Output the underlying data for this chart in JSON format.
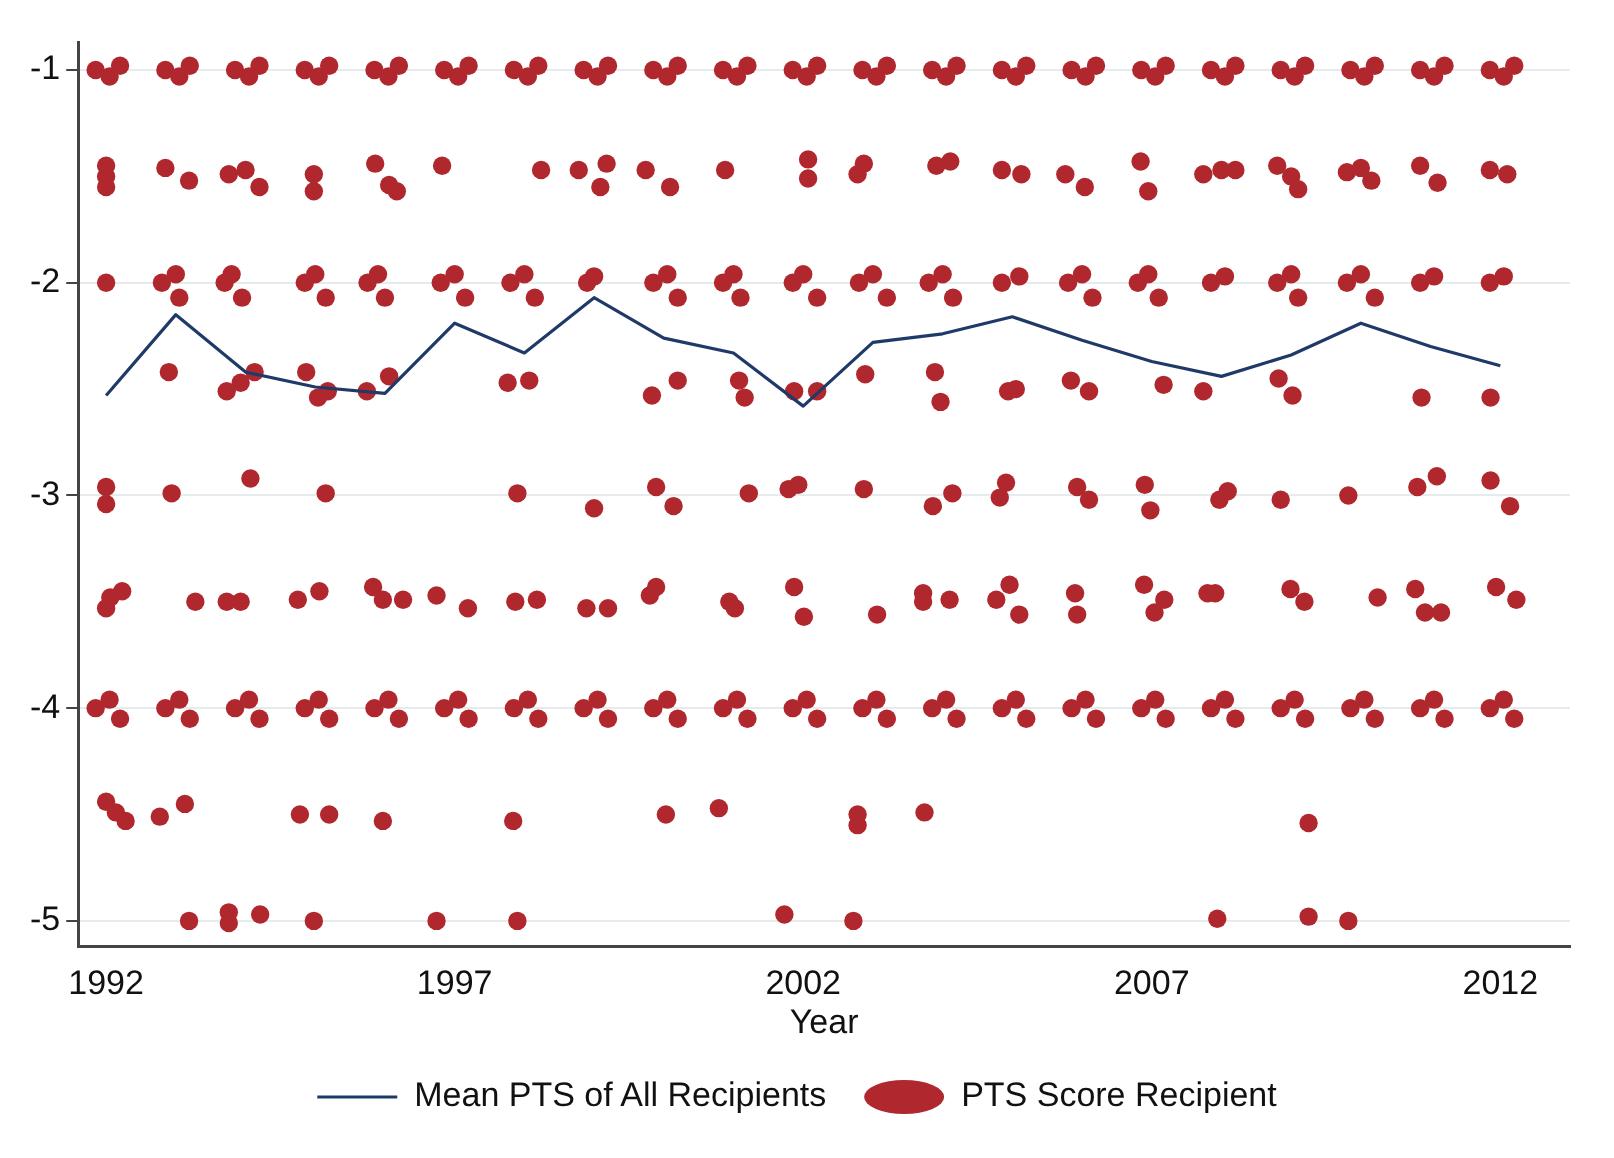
{
  "chart_data": {
    "type": "scatter",
    "xlabel": "Year",
    "xlim": [
      1991.6,
      2013
    ],
    "xticks": [
      1992,
      1997,
      2002,
      2007,
      2012
    ],
    "ylim": [
      -5.12,
      -0.87
    ],
    "yticks": [
      -1,
      -2,
      -3,
      -4,
      -5
    ],
    "grid": "y",
    "legend": "bottom",
    "series": [
      {
        "name": "Mean PTS of All Recipients",
        "type": "line",
        "color": "#1f3a68",
        "marker": "none",
        "line_style": "solid",
        "x": [
          1992,
          1993,
          1994,
          1995,
          1996,
          1997,
          1998,
          1999,
          2000,
          2001,
          2002,
          2003,
          2004,
          2005,
          2006,
          2007,
          2008,
          2009,
          2010,
          2011,
          2012
        ],
        "values": [
          -2.53,
          -2.15,
          -2.42,
          -2.49,
          -2.52,
          -2.19,
          -2.33,
          -2.07,
          -2.26,
          -2.33,
          -2.58,
          -2.28,
          -2.24,
          -2.16,
          -2.27,
          -2.37,
          -2.44,
          -2.34,
          -2.19,
          -2.3,
          -2.39
        ]
      },
      {
        "name": "PTS Score Recipient",
        "type": "scatter",
        "color": "#b0282e",
        "marker": "circle",
        "x": [
          1991.85,
          1992.05,
          1992.2,
          1992.85,
          1993.05,
          1993.2,
          1993.85,
          1994.05,
          1994.2,
          1994.85,
          1995.05,
          1995.2,
          1995.85,
          1996.05,
          1996.2,
          1996.85,
          1997.05,
          1997.2,
          1997.85,
          1998.05,
          1998.2,
          1998.85,
          1999.05,
          1999.2,
          1999.85,
          2000.05,
          2000.2,
          2000.85,
          2001.05,
          2001.2,
          2001.85,
          2002.05,
          2002.2,
          2002.85,
          2003.05,
          2003.2,
          2003.85,
          2004.05,
          2004.2,
          2004.85,
          2005.05,
          2005.2,
          2005.85,
          2006.05,
          2006.2,
          2006.85,
          2007.05,
          2007.2,
          2007.85,
          2008.05,
          2008.2,
          2008.85,
          2009.05,
          2009.2,
          2009.85,
          2010.05,
          2010.2,
          2010.85,
          2011.05,
          2011.2,
          2011.85,
          2012.05,
          2012.2,
          1992.0,
          1992.0,
          1992.0,
          1992.85,
          1993.19,
          1993.76,
          1994.0,
          1994.2,
          1994.98,
          1994.98,
          1995.86,
          1996.06,
          1996.17,
          1996.82,
          1998.24,
          1998.78,
          1999.18,
          1999.09,
          1999.74,
          2000.09,
          2000.88,
          2002.07,
          2002.07,
          2002.78,
          2002.87,
          2003.91,
          2004.11,
          2004.85,
          2005.13,
          2005.76,
          2006.04,
          2006.84,
          2006.95,
          2007.74,
          2008.0,
          2008.2,
          2008.8,
          2009.0,
          2009.1,
          2009.8,
          2010.0,
          2010.15,
          2010.85,
          2011.1,
          2011.85,
          2012.1,
          1992.0,
          1992.8,
          1993.0,
          1993.05,
          1993.7,
          1993.8,
          1993.95,
          1994.85,
          1995.0,
          1995.15,
          1995.75,
          1995.9,
          1996.0,
          1996.8,
          1997.0,
          1997.15,
          1997.8,
          1998.0,
          1998.15,
          1998.9,
          1999.0,
          1999.85,
          2000.05,
          2000.2,
          2000.85,
          2001.0,
          2001.1,
          2001.85,
          2002.0,
          2002.2,
          2002.8,
          2003.0,
          2003.2,
          2003.8,
          2004.0,
          2004.15,
          2004.85,
          2005.1,
          2005.8,
          2006.0,
          2006.15,
          2006.8,
          2006.95,
          2007.1,
          2007.85,
          2008.05,
          2008.8,
          2009.0,
          2009.1,
          2009.8,
          2010.0,
          2010.2,
          2010.85,
          2011.05,
          2011.85,
          2012.05,
          1992.9,
          1993.73,
          1993.93,
          1994.13,
          1994.87,
          1995.04,
          1995.18,
          1995.74,
          1996.06,
          1997.76,
          1998.07,
          1999.83,
          2000.2,
          2001.08,
          2001.16,
          2001.87,
          2002.2,
          2002.89,
          2003.89,
          2003.97,
          2004.94,
          2005.05,
          2005.84,
          2006.1,
          2007.17,
          2007.74,
          2008.82,
          2009.02,
          2010.87,
          2011.86,
          1992.0,
          1992.0,
          1992.94,
          1994.07,
          1995.15,
          1997.9,
          1999.0,
          1999.89,
          2000.14,
          2001.22,
          2001.79,
          2001.93,
          2002.87,
          2003.86,
          2004.14,
          2004.82,
          2004.91,
          2005.93,
          2006.1,
          2006.9,
          2006.98,
          2007.97,
          2008.09,
          2008.85,
          2009.82,
          2010.81,
          2011.09,
          2011.86,
          2012.14,
          1992.0,
          1992.06,
          1992.23,
          1993.28,
          1993.73,
          1993.93,
          1994.75,
          1995.06,
          1995.83,
          1995.97,
          1996.26,
          1996.74,
          1997.19,
          1997.87,
          1998.18,
          1998.89,
          1999.2,
          1999.8,
          1999.89,
          2000.94,
          2001.02,
          2001.87,
          2002.01,
          2003.06,
          2003.72,
          2003.72,
          2004.1,
          2004.77,
          2004.96,
          2005.1,
          2005.9,
          2005.93,
          2006.89,
          2007.04,
          2007.18,
          2007.8,
          2007.91,
          2008.99,
          2009.19,
          2010.24,
          2010.78,
          2010.92,
          2011.15,
          2011.94,
          2012.23,
          1991.85,
          1992.05,
          1992.2,
          1992.85,
          1993.05,
          1993.2,
          1993.85,
          1994.05,
          1994.2,
          1994.85,
          1995.05,
          1995.2,
          1995.85,
          1996.05,
          1996.2,
          1996.85,
          1997.05,
          1997.2,
          1997.85,
          1998.05,
          1998.2,
          1998.85,
          1999.05,
          1999.2,
          1999.85,
          2000.05,
          2000.2,
          2000.85,
          2001.05,
          2001.2,
          2001.85,
          2002.05,
          2002.2,
          2002.85,
          2003.05,
          2003.2,
          2003.85,
          2004.05,
          2004.2,
          2004.85,
          2005.05,
          2005.2,
          2005.85,
          2006.05,
          2006.2,
          2006.85,
          2007.05,
          2007.2,
          2007.85,
          2008.05,
          2008.2,
          2008.85,
          2009.05,
          2009.2,
          2009.85,
          2010.05,
          2010.2,
          2010.85,
          2011.05,
          2011.2,
          2011.85,
          2012.05,
          2012.2,
          1992.0,
          1992.14,
          1992.28,
          1992.77,
          1993.13,
          1994.78,
          1995.2,
          1995.97,
          1997.84,
          2000.03,
          2000.79,
          2002.78,
          2002.78,
          2003.74,
          2009.25,
          1993.19,
          1993.76,
          1993.76,
          1994.21,
          1994.98,
          1996.74,
          1997.9,
          2001.73,
          2002.72,
          2007.94,
          2009.25,
          2009.82
        ],
        "values": [
          -1.0,
          -1.03,
          -0.98,
          -1.0,
          -1.03,
          -0.98,
          -1.0,
          -1.03,
          -0.98,
          -1.0,
          -1.03,
          -0.98,
          -1.0,
          -1.03,
          -0.98,
          -1.0,
          -1.03,
          -0.98,
          -1.0,
          -1.03,
          -0.98,
          -1.0,
          -1.03,
          -0.98,
          -1.0,
          -1.03,
          -0.98,
          -1.0,
          -1.03,
          -0.98,
          -1.0,
          -1.03,
          -0.98,
          -1.0,
          -1.03,
          -0.98,
          -1.0,
          -1.03,
          -0.98,
          -1.0,
          -1.03,
          -0.98,
          -1.0,
          -1.03,
          -0.98,
          -1.0,
          -1.03,
          -0.98,
          -1.0,
          -1.03,
          -0.98,
          -1.0,
          -1.03,
          -0.98,
          -1.0,
          -1.03,
          -0.98,
          -1.0,
          -1.03,
          -0.98,
          -1.0,
          -1.03,
          -0.98,
          -1.45,
          -1.5,
          -1.55,
          -1.46,
          -1.52,
          -1.49,
          -1.47,
          -1.55,
          -1.49,
          -1.57,
          -1.44,
          -1.54,
          -1.57,
          -1.45,
          -1.47,
          -1.47,
          -1.44,
          -1.55,
          -1.47,
          -1.55,
          -1.47,
          -1.42,
          -1.51,
          -1.49,
          -1.44,
          -1.45,
          -1.43,
          -1.47,
          -1.49,
          -1.49,
          -1.55,
          -1.43,
          -1.57,
          -1.49,
          -1.47,
          -1.47,
          -1.45,
          -1.5,
          -1.56,
          -1.48,
          -1.46,
          -1.52,
          -1.45,
          -1.53,
          -1.47,
          -1.49,
          -2.0,
          -2.0,
          -1.96,
          -2.07,
          -2.0,
          -1.96,
          -2.07,
          -2.0,
          -1.96,
          -2.07,
          -2.0,
          -1.96,
          -2.07,
          -2.0,
          -1.96,
          -2.07,
          -2.0,
          -1.96,
          -2.07,
          -2.0,
          -1.97,
          -2.0,
          -1.96,
          -2.07,
          -2.0,
          -1.96,
          -2.07,
          -2.0,
          -1.96,
          -2.07,
          -2.0,
          -1.96,
          -2.07,
          -2.0,
          -1.96,
          -2.07,
          -2.0,
          -1.97,
          -2.0,
          -1.96,
          -2.07,
          -2.0,
          -1.96,
          -2.07,
          -2.0,
          -1.97,
          -2.0,
          -1.96,
          -2.07,
          -2.0,
          -1.96,
          -2.07,
          -2.0,
          -1.97,
          -2.0,
          -1.97,
          -2.42,
          -2.51,
          -2.47,
          -2.42,
          -2.42,
          -2.54,
          -2.51,
          -2.51,
          -2.44,
          -2.47,
          -2.46,
          -2.53,
          -2.46,
          -2.46,
          -2.54,
          -2.51,
          -2.51,
          -2.43,
          -2.42,
          -2.56,
          -2.51,
          -2.5,
          -2.46,
          -2.51,
          -2.48,
          -2.51,
          -2.45,
          -2.53,
          -2.54,
          -2.54,
          -2.96,
          -3.04,
          -2.99,
          -2.92,
          -2.99,
          -2.99,
          -3.06,
          -2.96,
          -3.05,
          -2.99,
          -2.97,
          -2.95,
          -2.97,
          -3.05,
          -2.99,
          -3.01,
          -2.94,
          -2.96,
          -3.02,
          -2.95,
          -3.07,
          -3.02,
          -2.98,
          -3.02,
          -3.0,
          -2.96,
          -2.91,
          -2.93,
          -3.05,
          -3.53,
          -3.48,
          -3.45,
          -3.5,
          -3.5,
          -3.5,
          -3.49,
          -3.45,
          -3.43,
          -3.49,
          -3.49,
          -3.47,
          -3.53,
          -3.5,
          -3.49,
          -3.53,
          -3.53,
          -3.47,
          -3.43,
          -3.5,
          -3.53,
          -3.43,
          -3.57,
          -3.56,
          -3.46,
          -3.5,
          -3.49,
          -3.49,
          -3.42,
          -3.56,
          -3.46,
          -3.56,
          -3.42,
          -3.55,
          -3.49,
          -3.46,
          -3.46,
          -3.44,
          -3.5,
          -3.48,
          -3.44,
          -3.55,
          -3.55,
          -3.43,
          -3.49,
          -4.0,
          -3.96,
          -4.05,
          -4.0,
          -3.96,
          -4.05,
          -4.0,
          -3.96,
          -4.05,
          -4.0,
          -3.96,
          -4.05,
          -4.0,
          -3.96,
          -4.05,
          -4.0,
          -3.96,
          -4.05,
          -4.0,
          -3.96,
          -4.05,
          -4.0,
          -3.96,
          -4.05,
          -4.0,
          -3.96,
          -4.05,
          -4.0,
          -3.96,
          -4.05,
          -4.0,
          -3.96,
          -4.05,
          -4.0,
          -3.96,
          -4.05,
          -4.0,
          -3.96,
          -4.05,
          -4.0,
          -3.96,
          -4.05,
          -4.0,
          -3.96,
          -4.05,
          -4.0,
          -3.96,
          -4.05,
          -4.0,
          -3.96,
          -4.05,
          -4.0,
          -3.96,
          -4.05,
          -4.0,
          -3.96,
          -4.05,
          -4.0,
          -3.96,
          -4.05,
          -4.0,
          -3.96,
          -4.05,
          -4.44,
          -4.49,
          -4.53,
          -4.51,
          -4.45,
          -4.5,
          -4.5,
          -4.53,
          -4.53,
          -4.5,
          -4.47,
          -4.5,
          -4.55,
          -4.49,
          -4.54,
          -5.0,
          -4.96,
          -5.01,
          -4.97,
          -5.0,
          -5.0,
          -5.0,
          -4.97,
          -5.0,
          -4.99,
          -4.98,
          -5.0
        ]
      }
    ]
  }
}
